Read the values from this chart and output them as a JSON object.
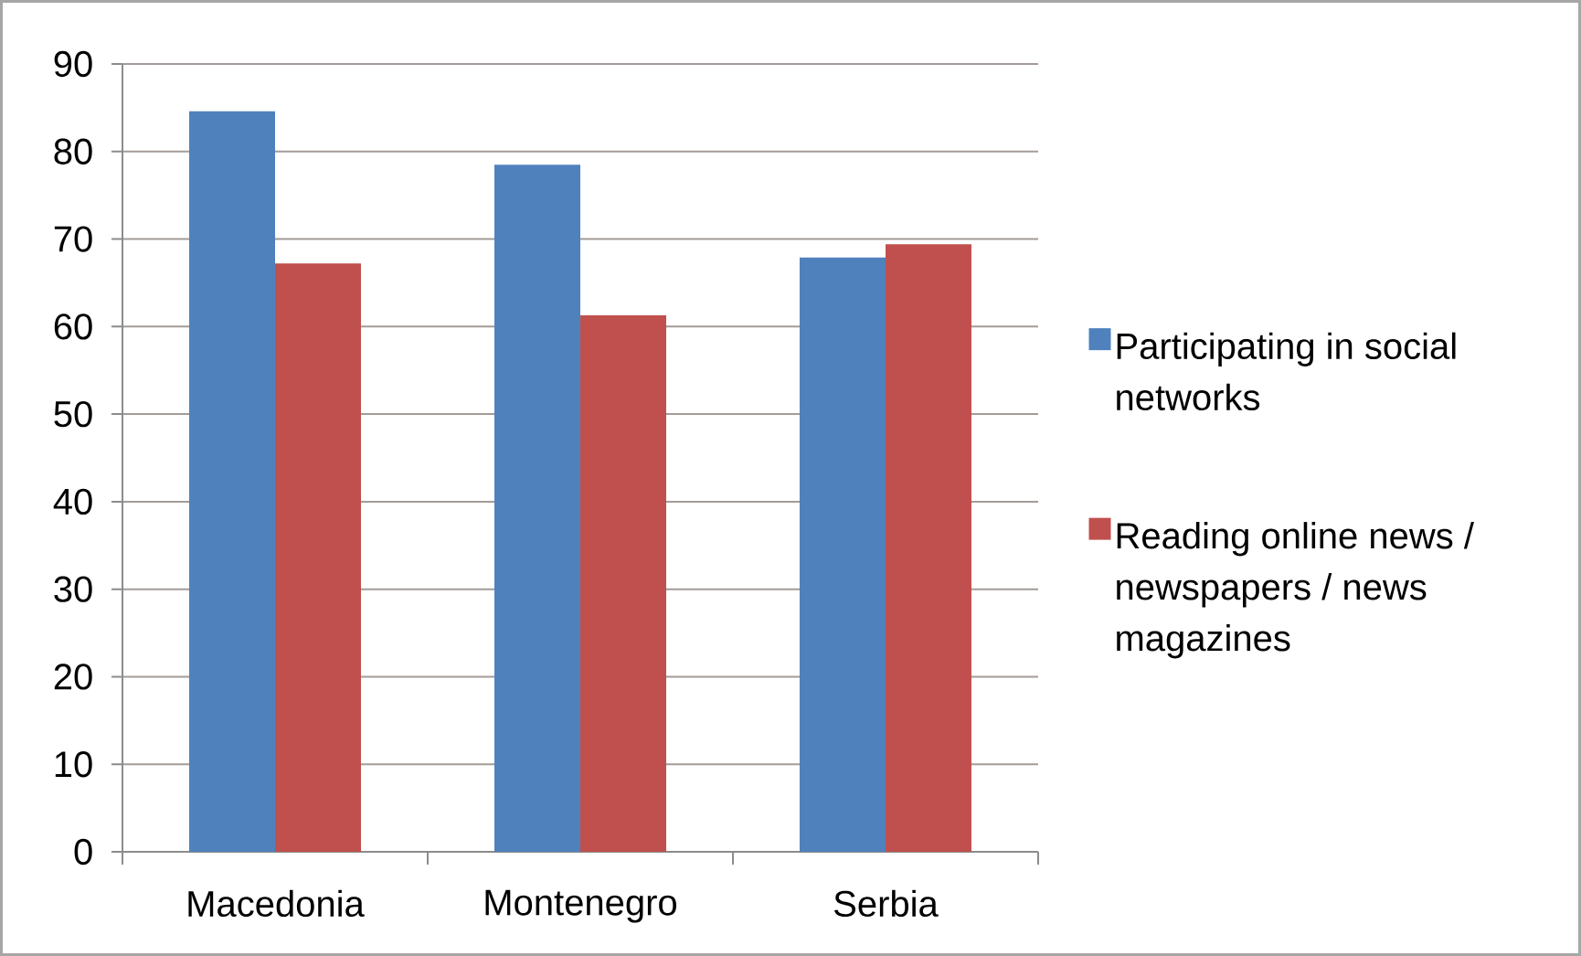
{
  "chart_data": {
    "type": "bar",
    "categories": [
      "Macedonia",
      "Montenegro",
      "Serbia"
    ],
    "series": [
      {
        "name": "Participating in social networks",
        "color": "#4f81bd",
        "values": [
          84.6,
          78.5,
          67.9
        ]
      },
      {
        "name": "Reading online news / newspapers / news magazines",
        "color": "#c0504d",
        "values": [
          67.2,
          61.3,
          69.4
        ]
      }
    ],
    "ylim": [
      0,
      90
    ],
    "yticks": [
      0,
      10,
      20,
      30,
      40,
      50,
      60,
      70,
      80,
      90
    ],
    "grid": "y",
    "legend": "right"
  }
}
